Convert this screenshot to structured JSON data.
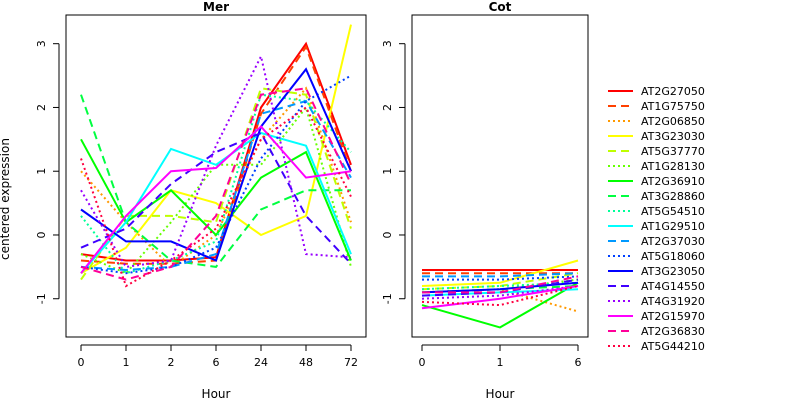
{
  "chart_data": {
    "type": "line",
    "ylabel": "centered expression",
    "xlabel": "Hour",
    "ylim": [
      -1.6,
      3.45
    ],
    "yticks": [
      -1,
      0,
      1,
      2,
      3
    ],
    "grid": false,
    "legend_position": "right",
    "panels": [
      {
        "title": "Mer",
        "x": [
          "0",
          "1",
          "2",
          "6",
          "24",
          "48",
          "72"
        ],
        "series": [
          {
            "name": "AT2G27050",
            "color": "#ff0000",
            "dash": "solid",
            "values": [
              -0.3,
              -0.4,
              -0.4,
              -0.35,
              2.0,
              3.0,
              1.1
            ]
          },
          {
            "name": "AT1G75750",
            "color": "#ff4000",
            "dash": "dashed",
            "values": [
              -0.4,
              -0.45,
              -0.45,
              -0.4,
              1.9,
              2.95,
              1.0
            ]
          },
          {
            "name": "AT2G06850",
            "color": "#ff9900",
            "dash": "dotted",
            "values": [
              1.0,
              0.2,
              -0.5,
              0.0,
              1.5,
              2.3,
              0.2
            ]
          },
          {
            "name": "AT3G23030",
            "color": "#ffff00",
            "dash": "solid",
            "values": [
              -0.6,
              -0.2,
              0.7,
              0.5,
              0.0,
              0.3,
              3.3
            ]
          },
          {
            "name": "AT5G37770",
            "color": "#bfff00",
            "dash": "dashed",
            "values": [
              -0.7,
              0.3,
              0.3,
              0.2,
              2.3,
              2.2,
              0.1
            ]
          },
          {
            "name": "AT1G28130",
            "color": "#66ff00",
            "dash": "dotted",
            "values": [
              -0.3,
              -0.6,
              0.2,
              1.1,
              1.1,
              2.0,
              -0.5
            ]
          },
          {
            "name": "AT2G36910",
            "color": "#00ff00",
            "dash": "solid",
            "values": [
              1.5,
              0.2,
              0.7,
              0.0,
              0.9,
              1.3,
              -0.4
            ]
          },
          {
            "name": "AT3G28860",
            "color": "#00ff40",
            "dash": "dashed",
            "values": [
              2.2,
              0.2,
              -0.4,
              -0.5,
              0.4,
              0.7,
              0.7
            ]
          },
          {
            "name": "AT5G54510",
            "color": "#00ff99",
            "dash": "dotted",
            "values": [
              0.3,
              -0.6,
              -0.4,
              -0.1,
              2.2,
              2.1,
              1.3
            ]
          },
          {
            "name": "AT1G29510",
            "color": "#00ffff",
            "dash": "solid",
            "values": [
              -0.6,
              0.2,
              1.35,
              1.1,
              1.6,
              1.4,
              -0.3
            ]
          },
          {
            "name": "AT2G37030",
            "color": "#0099ff",
            "dash": "dashed",
            "values": [
              -0.5,
              -0.55,
              -0.5,
              -0.3,
              1.9,
              2.1,
              0.9
            ]
          },
          {
            "name": "AT5G18060",
            "color": "#0040ff",
            "dash": "dotted",
            "values": [
              -0.5,
              -0.6,
              -0.5,
              -0.2,
              1.2,
              2.1,
              2.5
            ]
          },
          {
            "name": "AT3G23050",
            "color": "#0000ff",
            "dash": "solid",
            "values": [
              0.4,
              -0.1,
              -0.1,
              -0.4,
              1.7,
              2.6,
              1.0
            ]
          },
          {
            "name": "AT4G14550",
            "color": "#4000ff",
            "dash": "dashed",
            "values": [
              -0.2,
              0.1,
              0.8,
              1.3,
              1.6,
              0.3,
              -0.45
            ]
          },
          {
            "name": "AT4G31920",
            "color": "#9900ff",
            "dash": "dotted",
            "values": [
              0.7,
              -0.5,
              -0.4,
              1.4,
              2.8,
              -0.3,
              -0.35
            ]
          },
          {
            "name": "AT2G15970",
            "color": "#ff00ff",
            "dash": "solid",
            "values": [
              -0.6,
              0.3,
              1.0,
              1.05,
              1.7,
              0.9,
              1.0
            ]
          },
          {
            "name": "AT2G36830",
            "color": "#ff0099",
            "dash": "dashed",
            "values": [
              -0.5,
              -0.7,
              -0.5,
              0.3,
              2.2,
              2.3,
              0.8
            ]
          },
          {
            "name": "AT5G44210",
            "color": "#ff0040",
            "dash": "dotted",
            "values": [
              1.2,
              -0.8,
              -0.4,
              0.1,
              1.5,
              2.0,
              0.6
            ]
          }
        ]
      },
      {
        "title": "Cot",
        "x": [
          "0",
          "1",
          "6"
        ],
        "series": [
          {
            "name": "AT2G27050",
            "color": "#ff0000",
            "dash": "solid",
            "values": [
              -0.55,
              -0.55,
              -0.55
            ]
          },
          {
            "name": "AT1G75750",
            "color": "#ff4000",
            "dash": "dashed",
            "values": [
              -0.6,
              -0.6,
              -0.6
            ]
          },
          {
            "name": "AT2G06850",
            "color": "#ff9900",
            "dash": "dotted",
            "values": [
              -0.9,
              -0.85,
              -1.2
            ]
          },
          {
            "name": "AT3G23030",
            "color": "#ffff00",
            "dash": "solid",
            "values": [
              -0.8,
              -0.75,
              -0.4
            ]
          },
          {
            "name": "AT5G37770",
            "color": "#bfff00",
            "dash": "dashed",
            "values": [
              -0.85,
              -0.8,
              -0.6
            ]
          },
          {
            "name": "AT1G28130",
            "color": "#66ff00",
            "dash": "dotted",
            "values": [
              -0.9,
              -0.85,
              -0.7
            ]
          },
          {
            "name": "AT2G36910",
            "color": "#00ff00",
            "dash": "solid",
            "values": [
              -1.1,
              -1.45,
              -0.75
            ]
          },
          {
            "name": "AT3G28860",
            "color": "#00ff40",
            "dash": "dashed",
            "values": [
              -0.9,
              -0.85,
              -0.8
            ]
          },
          {
            "name": "AT5G54510",
            "color": "#00ff99",
            "dash": "dotted",
            "values": [
              -0.85,
              -0.8,
              -0.75
            ]
          },
          {
            "name": "AT1G29510",
            "color": "#00ffff",
            "dash": "solid",
            "values": [
              -0.95,
              -0.9,
              -0.85
            ]
          },
          {
            "name": "AT2G37030",
            "color": "#0099ff",
            "dash": "dashed",
            "values": [
              -0.65,
              -0.65,
              -0.6
            ]
          },
          {
            "name": "AT5G18060",
            "color": "#0040ff",
            "dash": "dotted",
            "values": [
              -0.7,
              -0.7,
              -0.65
            ]
          },
          {
            "name": "AT3G23050",
            "color": "#0000ff",
            "dash": "solid",
            "values": [
              -0.9,
              -0.85,
              -0.75
            ]
          },
          {
            "name": "AT4G14550",
            "color": "#4000ff",
            "dash": "dashed",
            "values": [
              -0.95,
              -0.9,
              -0.7
            ]
          },
          {
            "name": "AT4G31920",
            "color": "#9900ff",
            "dash": "dotted",
            "values": [
              -1.0,
              -0.95,
              -0.8
            ]
          },
          {
            "name": "AT2G15970",
            "color": "#ff00ff",
            "dash": "solid",
            "values": [
              -1.15,
              -1.0,
              -0.8
            ]
          },
          {
            "name": "AT2G36830",
            "color": "#ff0099",
            "dash": "dashed",
            "values": [
              -0.9,
              -0.9,
              -0.65
            ]
          },
          {
            "name": "AT5G44210",
            "color": "#ff0040",
            "dash": "dotted",
            "values": [
              -1.05,
              -1.1,
              -0.8
            ]
          }
        ]
      }
    ]
  }
}
